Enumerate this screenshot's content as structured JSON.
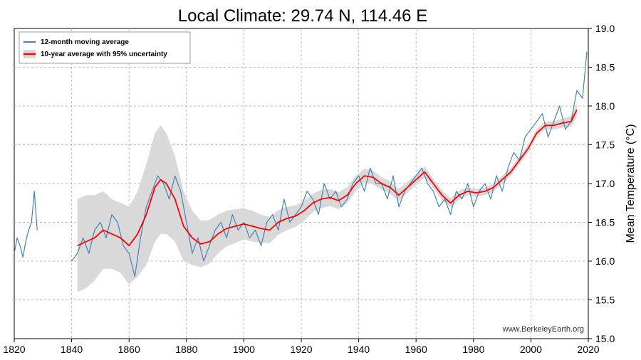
{
  "chart_data": {
    "type": "line",
    "title": "Local Climate: 29.74 N, 114.46 E",
    "xlabel": "",
    "ylabel": "Mean Temperature (°C)",
    "xlim": [
      1820,
      2020
    ],
    "ylim": [
      15.0,
      19.0
    ],
    "x_ticks": [
      1820,
      1840,
      1860,
      1880,
      1900,
      1920,
      1940,
      1960,
      1980,
      2000,
      2020
    ],
    "y_ticks": [
      "15.0",
      "15.5",
      "16.0",
      "16.5",
      "17.0",
      "17.5",
      "18.0",
      "18.5",
      "19.0"
    ],
    "y_axis_side": "right",
    "grid": true,
    "legend_position": "top-left",
    "watermark": "www.BerkeleyEarth.org",
    "colors": {
      "moving_average": "#4682b4",
      "decadal": "#ff0000",
      "uncertainty": "#d9d9d9"
    },
    "series": [
      {
        "name": "12-month moving average",
        "segments": [
          {
            "x": [
              1820.0,
              1821.0,
              1822.0,
              1823.0,
              1824.0,
              1825.0,
              1826.0,
              1827.0,
              1828.0
            ],
            "y": [
              16.1,
              16.3,
              16.2,
              16.05,
              16.25,
              16.4,
              16.5,
              16.9,
              16.4
            ]
          },
          {
            "x": [
              1840.0,
              1842,
              1844,
              1846,
              1848,
              1850,
              1852,
              1854,
              1856,
              1858,
              1860,
              1862,
              1864,
              1866,
              1868,
              1870,
              1872,
              1874,
              1876,
              1878,
              1880,
              1882,
              1884,
              1886,
              1888,
              1890,
              1892,
              1894,
              1896,
              1898,
              1900,
              1902,
              1904,
              1906,
              1908,
              1910,
              1912,
              1914,
              1916,
              1918,
              1920,
              1922,
              1924,
              1926,
              1928,
              1930,
              1932,
              1934,
              1936,
              1938,
              1940,
              1942,
              1944,
              1946,
              1948,
              1950,
              1952,
              1954,
              1956,
              1958,
              1960,
              1962,
              1964,
              1966,
              1968,
              1970,
              1972,
              1974,
              1976,
              1978,
              1980,
              1982,
              1984,
              1986,
              1988,
              1990,
              1992,
              1994,
              1996,
              1998,
              2000,
              2002,
              2004,
              2006,
              2008,
              2010,
              2012,
              2014,
              2016,
              2018,
              2019.5
            ],
            "y": [
              16.0,
              16.1,
              16.3,
              16.1,
              16.4,
              16.5,
              16.3,
              16.6,
              16.5,
              16.2,
              16.1,
              15.8,
              16.3,
              16.7,
              16.9,
              17.1,
              17.0,
              16.8,
              17.1,
              16.9,
              16.5,
              16.1,
              16.3,
              16.0,
              16.2,
              16.4,
              16.5,
              16.3,
              16.6,
              16.4,
              16.5,
              16.3,
              16.4,
              16.2,
              16.5,
              16.6,
              16.4,
              16.8,
              16.5,
              16.6,
              16.7,
              16.9,
              16.8,
              16.6,
              17.0,
              16.8,
              16.9,
              16.7,
              16.8,
              17.0,
              17.1,
              16.9,
              17.2,
              17.0,
              17.0,
              16.8,
              17.1,
              16.7,
              16.9,
              17.0,
              17.1,
              17.2,
              17.0,
              16.9,
              16.7,
              16.8,
              16.6,
              16.9,
              16.8,
              17.0,
              16.7,
              16.9,
              17.0,
              16.8,
              17.1,
              16.9,
              17.2,
              17.4,
              17.3,
              17.6,
              17.7,
              17.8,
              17.9,
              17.6,
              17.8,
              18.0,
              17.7,
              17.8,
              18.2,
              18.1,
              18.7
            ]
          }
        ]
      },
      {
        "name": "10-year average with 95% uncertainty",
        "x": [
          1842,
          1845,
          1848,
          1851,
          1854,
          1857,
          1860,
          1863,
          1866,
          1869,
          1871,
          1873,
          1876,
          1879,
          1882,
          1885,
          1888,
          1891,
          1894,
          1897,
          1900,
          1903,
          1906,
          1909,
          1912,
          1915,
          1918,
          1921,
          1924,
          1927,
          1930,
          1933,
          1936,
          1939,
          1942,
          1945,
          1948,
          1951,
          1954,
          1957,
          1960,
          1963,
          1966,
          1969,
          1972,
          1975,
          1978,
          1981,
          1984,
          1987,
          1990,
          1993,
          1996,
          1999,
          2002,
          2005,
          2008,
          2011,
          2014,
          2016
        ],
        "y": [
          16.2,
          16.25,
          16.3,
          16.4,
          16.35,
          16.3,
          16.2,
          16.35,
          16.6,
          16.95,
          17.05,
          17.0,
          16.8,
          16.45,
          16.3,
          16.22,
          16.25,
          16.35,
          16.42,
          16.45,
          16.48,
          16.45,
          16.42,
          16.4,
          16.5,
          16.55,
          16.58,
          16.65,
          16.75,
          16.8,
          16.82,
          16.78,
          16.85,
          17.0,
          17.1,
          17.08,
          17.0,
          16.95,
          16.85,
          16.95,
          17.05,
          17.15,
          17.0,
          16.85,
          16.75,
          16.85,
          16.9,
          16.88,
          16.9,
          16.95,
          17.05,
          17.15,
          17.3,
          17.45,
          17.65,
          17.75,
          17.75,
          17.78,
          17.8,
          17.95
        ],
        "uncertainty": [
          0.6,
          0.6,
          0.55,
          0.5,
          0.45,
          0.45,
          0.5,
          0.55,
          0.65,
          0.7,
          0.7,
          0.65,
          0.55,
          0.45,
          0.35,
          0.3,
          0.28,
          0.25,
          0.23,
          0.22,
          0.2,
          0.2,
          0.18,
          0.17,
          0.16,
          0.15,
          0.14,
          0.13,
          0.12,
          0.12,
          0.11,
          0.11,
          0.1,
          0.1,
          0.09,
          0.09,
          0.08,
          0.08,
          0.08,
          0.07,
          0.07,
          0.07,
          0.06,
          0.06,
          0.06,
          0.06,
          0.05,
          0.05,
          0.05,
          0.05,
          0.05,
          0.05,
          0.05,
          0.05,
          0.05,
          0.05,
          0.05,
          0.06,
          0.07,
          0.08
        ]
      }
    ]
  }
}
